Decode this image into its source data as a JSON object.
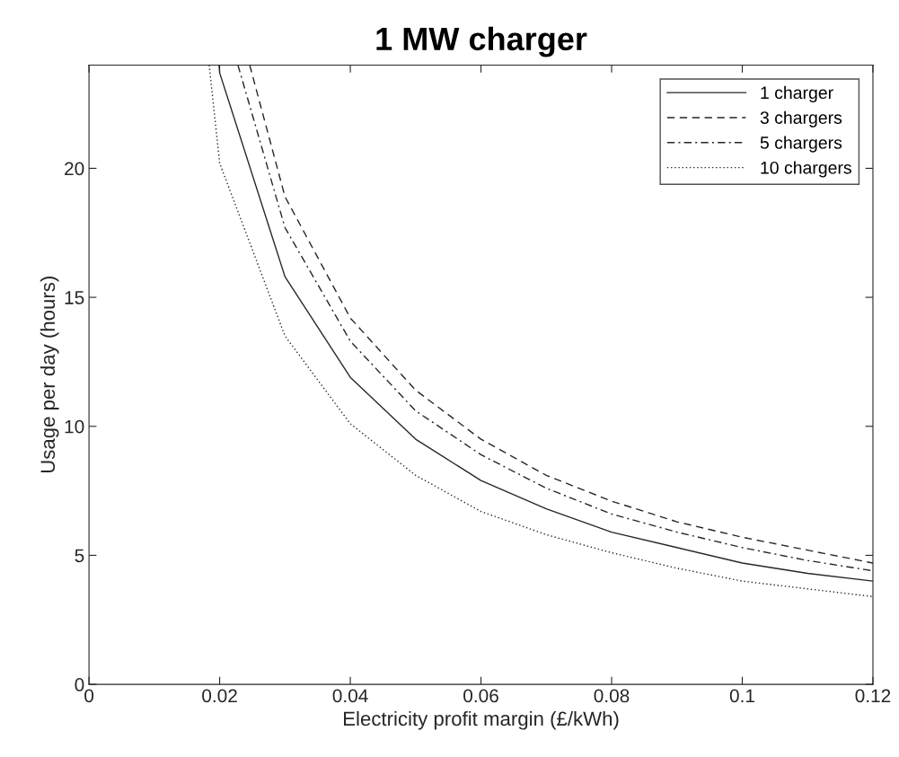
{
  "chart_data": {
    "type": "line",
    "title": "1 MW charger",
    "xlabel": "Electricity profit margin (£/kWh)",
    "ylabel": "Usage per day (hours)",
    "xlim": [
      0,
      0.12
    ],
    "ylim": [
      0,
      24
    ],
    "xticks": [
      0,
      0.02,
      0.04,
      0.06,
      0.08,
      0.1,
      0.12
    ],
    "yticks": [
      0,
      5,
      10,
      15,
      20
    ],
    "grid": false,
    "legend": "top right",
    "marker": "none",
    "series": [
      {
        "name": "1 charger",
        "color": "#262626",
        "line_style": "solid",
        "x": [
          0.0199,
          0.02,
          0.03,
          0.04,
          0.05,
          0.06,
          0.07,
          0.08,
          0.09,
          0.1,
          0.11,
          0.12
        ],
        "values": [
          24,
          23.7,
          15.8,
          11.9,
          9.5,
          7.9,
          6.8,
          5.9,
          5.3,
          4.7,
          4.3,
          4.0
        ]
      },
      {
        "name": "3 chargers",
        "color": "#262626",
        "line_style": "dashed",
        "x": [
          0.0246,
          0.03,
          0.04,
          0.05,
          0.06,
          0.07,
          0.08,
          0.09,
          0.1,
          0.11,
          0.12
        ],
        "values": [
          24,
          18.9,
          14.2,
          11.4,
          9.5,
          8.1,
          7.1,
          6.3,
          5.7,
          5.2,
          4.7
        ]
      },
      {
        "name": "5 chargers",
        "color": "#262626",
        "line_style": "dashdot",
        "x": [
          0.0228,
          0.03,
          0.04,
          0.05,
          0.06,
          0.07,
          0.08,
          0.09,
          0.1,
          0.11,
          0.12
        ],
        "values": [
          24,
          17.7,
          13.3,
          10.6,
          8.9,
          7.6,
          6.6,
          5.9,
          5.3,
          4.8,
          4.4
        ]
      },
      {
        "name": "10 chargers",
        "color": "#262626",
        "line_style": "dotted",
        "x": [
          0.0184,
          0.02,
          0.03,
          0.04,
          0.05,
          0.06,
          0.07,
          0.08,
          0.09,
          0.1,
          0.11,
          0.12
        ],
        "values": [
          24,
          20.2,
          13.5,
          10.1,
          8.1,
          6.7,
          5.8,
          5.1,
          4.5,
          4.0,
          3.7,
          3.4
        ]
      }
    ]
  }
}
